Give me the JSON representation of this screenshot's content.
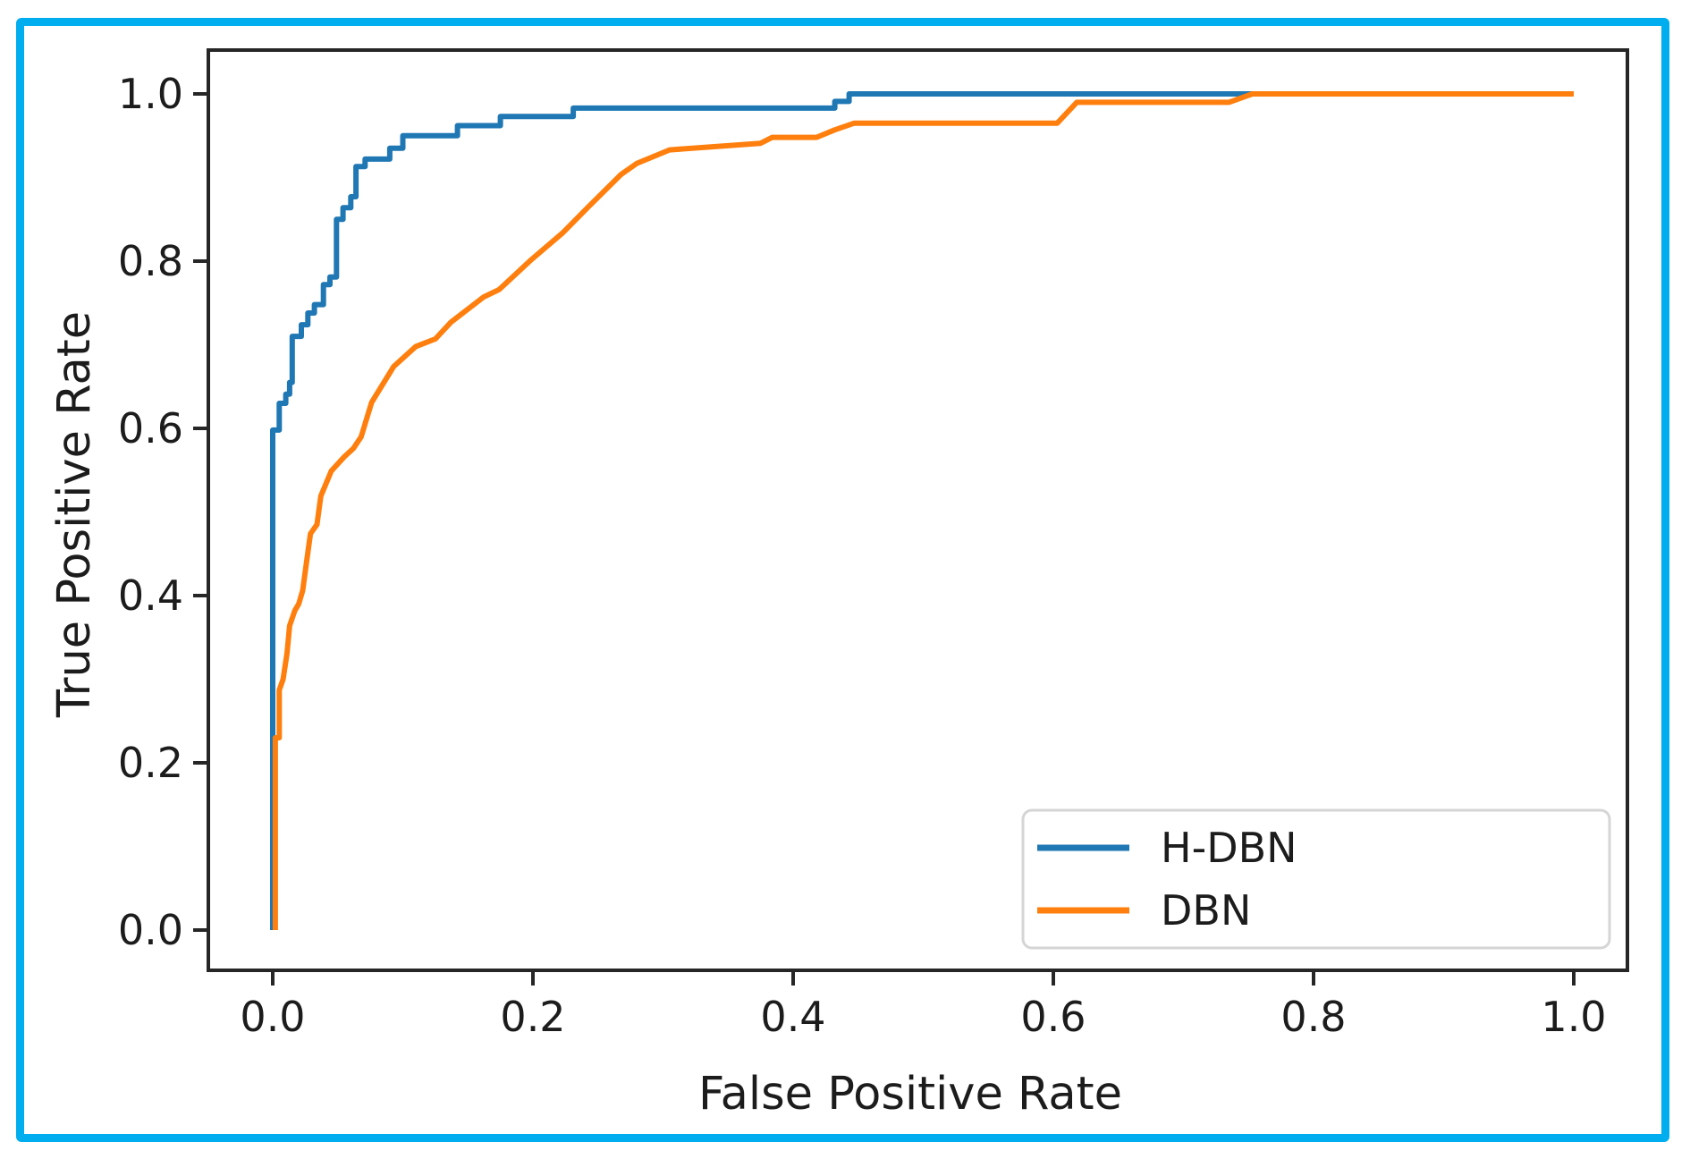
{
  "figure": {
    "border_color": "#00AEEF",
    "background_color": "#ffffff"
  },
  "chart_data": {
    "type": "line",
    "subtype": "roc-curve",
    "title": "",
    "xlabel": "False Positive Rate",
    "ylabel": "True Positive Rate",
    "xlim": [
      -0.05,
      1.04
    ],
    "ylim": [
      -0.05,
      1.05
    ],
    "grid": false,
    "legend_position": "lower right",
    "x_ticks": [
      0.0,
      0.2,
      0.4,
      0.6,
      0.8,
      1.0
    ],
    "y_ticks": [
      0.0,
      0.2,
      0.4,
      0.6,
      0.8,
      1.0
    ],
    "x_tick_labels": [
      "0.0",
      "0.2",
      "0.4",
      "0.6",
      "0.8",
      "1.0"
    ],
    "y_tick_labels": [
      "0.0",
      "0.2",
      "0.4",
      "0.6",
      "0.8",
      "1.0"
    ],
    "series": [
      {
        "name": "H-DBN",
        "color": "#1f77b4",
        "style": "step",
        "points": [
          [
            0.0,
            0.0
          ],
          [
            0.0,
            0.598
          ],
          [
            0.005,
            0.598
          ],
          [
            0.005,
            0.63
          ],
          [
            0.01,
            0.63
          ],
          [
            0.01,
            0.641
          ],
          [
            0.013,
            0.641
          ],
          [
            0.013,
            0.655
          ],
          [
            0.015,
            0.655
          ],
          [
            0.015,
            0.71
          ],
          [
            0.022,
            0.71
          ],
          [
            0.022,
            0.724
          ],
          [
            0.027,
            0.724
          ],
          [
            0.027,
            0.738
          ],
          [
            0.032,
            0.738
          ],
          [
            0.032,
            0.748
          ],
          [
            0.039,
            0.748
          ],
          [
            0.039,
            0.772
          ],
          [
            0.044,
            0.772
          ],
          [
            0.044,
            0.781
          ],
          [
            0.049,
            0.781
          ],
          [
            0.049,
            0.85
          ],
          [
            0.054,
            0.85
          ],
          [
            0.054,
            0.864
          ],
          [
            0.06,
            0.864
          ],
          [
            0.06,
            0.877
          ],
          [
            0.064,
            0.877
          ],
          [
            0.064,
            0.913
          ],
          [
            0.071,
            0.913
          ],
          [
            0.071,
            0.922
          ],
          [
            0.09,
            0.922
          ],
          [
            0.09,
            0.935
          ],
          [
            0.1,
            0.935
          ],
          [
            0.1,
            0.95
          ],
          [
            0.142,
            0.95
          ],
          [
            0.142,
            0.962
          ],
          [
            0.175,
            0.962
          ],
          [
            0.175,
            0.973
          ],
          [
            0.231,
            0.973
          ],
          [
            0.231,
            0.983
          ],
          [
            0.432,
            0.983
          ],
          [
            0.432,
            0.991
          ],
          [
            0.443,
            0.991
          ],
          [
            0.443,
            1.0
          ],
          [
            1.0,
            1.0
          ]
        ]
      },
      {
        "name": "DBN",
        "color": "#ff7f0e",
        "style": "line",
        "points": [
          [
            0.002,
            0.0
          ],
          [
            0.002,
            0.23
          ],
          [
            0.005,
            0.23
          ],
          [
            0.005,
            0.287
          ],
          [
            0.008,
            0.3
          ],
          [
            0.011,
            0.331
          ],
          [
            0.013,
            0.364
          ],
          [
            0.017,
            0.382
          ],
          [
            0.02,
            0.39
          ],
          [
            0.023,
            0.406
          ],
          [
            0.026,
            0.44
          ],
          [
            0.029,
            0.474
          ],
          [
            0.034,
            0.485
          ],
          [
            0.037,
            0.519
          ],
          [
            0.045,
            0.549
          ],
          [
            0.055,
            0.566
          ],
          [
            0.062,
            0.576
          ],
          [
            0.068,
            0.59
          ],
          [
            0.076,
            0.631
          ],
          [
            0.093,
            0.674
          ],
          [
            0.11,
            0.698
          ],
          [
            0.125,
            0.707
          ],
          [
            0.137,
            0.727
          ],
          [
            0.162,
            0.757
          ],
          [
            0.174,
            0.766
          ],
          [
            0.199,
            0.802
          ],
          [
            0.223,
            0.834
          ],
          [
            0.242,
            0.864
          ],
          [
            0.268,
            0.904
          ],
          [
            0.28,
            0.917
          ],
          [
            0.305,
            0.933
          ],
          [
            0.375,
            0.941
          ],
          [
            0.384,
            0.948
          ],
          [
            0.418,
            0.948
          ],
          [
            0.432,
            0.957
          ],
          [
            0.447,
            0.965
          ],
          [
            0.603,
            0.965
          ],
          [
            0.618,
            0.99
          ],
          [
            0.735,
            0.99
          ],
          [
            0.753,
            1.0
          ],
          [
            1.0,
            1.0
          ]
        ]
      }
    ]
  },
  "legend": {
    "items": [
      {
        "label": "H-DBN",
        "color": "#1f77b4"
      },
      {
        "label": "DBN",
        "color": "#ff7f0e"
      }
    ]
  }
}
